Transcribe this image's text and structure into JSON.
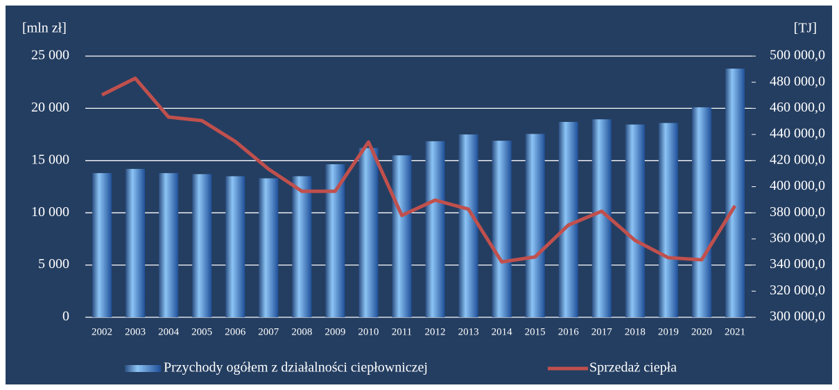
{
  "chart_data": {
    "type": "bar+line",
    "y_label": "[mln zł]",
    "y2_label": "[TJ]",
    "categories": [
      "2002",
      "2003",
      "2004",
      "2005",
      "2006",
      "2007",
      "2008",
      "2009",
      "2010",
      "2011",
      "2012",
      "2013",
      "2014",
      "2015",
      "2016",
      "2017",
      "2018",
      "2019",
      "2020",
      "2021"
    ],
    "series": [
      {
        "name": "Przychody ogółem z działalności ciepłowniczej",
        "type": "bar",
        "color": "#4f8fd8",
        "values": [
          13800,
          14200,
          13800,
          13700,
          13500,
          13300,
          13500,
          14650,
          16200,
          15500,
          16850,
          17500,
          16900,
          17550,
          18700,
          18950,
          18450,
          18600,
          20100,
          23800
        ]
      },
      {
        "name": "Sprzedaż ciepła",
        "type": "line",
        "color": "#c0504d",
        "axis": "y2",
        "values": [
          470300,
          483000,
          453300,
          450600,
          434700,
          413500,
          396500,
          396500,
          434200,
          378000,
          389700,
          382800,
          342400,
          346200,
          370600,
          381200,
          358900,
          345600,
          344000,
          385400
        ]
      }
    ],
    "ylim": [
      0,
      25000
    ],
    "yticks": [
      0,
      {
        "value": 5000,
        "label": "5 000"
      },
      {
        "value": 10000,
        "label": "10 000"
      },
      {
        "value": 15000,
        "label": "15 000"
      },
      {
        "value": 20000,
        "label": "20 000"
      },
      {
        "value": 25000,
        "label": "25 000"
      }
    ],
    "y2lim": [
      300000,
      500000
    ],
    "y2ticks": [
      {
        "value": 300000,
        "label": "300 000,0"
      },
      {
        "value": 320000,
        "label": "320 000,0"
      },
      {
        "value": 340000,
        "label": "340 000,0"
      },
      {
        "value": 360000,
        "label": "360 000,0"
      },
      {
        "value": 380000,
        "label": "380 000,0"
      },
      {
        "value": 400000,
        "label": "400 000,0"
      },
      {
        "value": 420000,
        "label": "420 000,0"
      },
      {
        "value": 440000,
        "label": "440 000,0"
      },
      {
        "value": 460000,
        "label": "460 000,0"
      },
      {
        "value": 480000,
        "label": "480 000,0"
      },
      {
        "value": 500000,
        "label": "500 000,0"
      }
    ],
    "grid": true,
    "legend": "bottom"
  }
}
